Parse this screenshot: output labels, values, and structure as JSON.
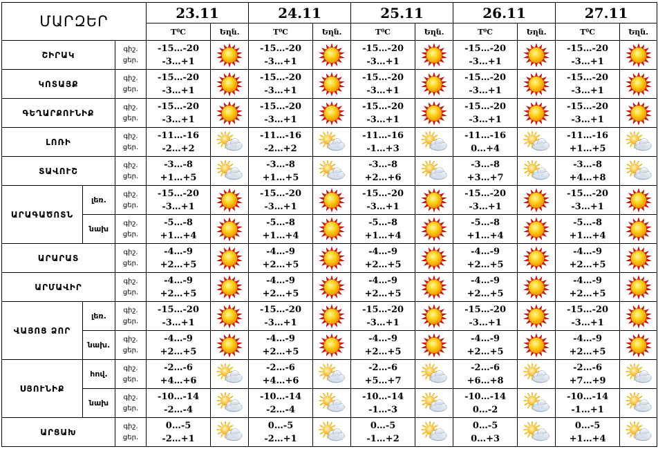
{
  "header": {
    "region_label": "ՄԱՐԶԵՐ",
    "dates": [
      "23.11",
      "24.11",
      "25.11",
      "26.11",
      "27.11"
    ],
    "temp_label": "T⁰C",
    "weather_label": "Եղն."
  },
  "rows": [
    {
      "region": "ՇԻՐԱԿ",
      "sub": "",
      "night_label": "գիշ.",
      "day_label": "ցեր.",
      "cells": [
        {
          "night": "-15…-20",
          "day": "-3…+1",
          "icon": "sun-icon"
        },
        {
          "night": "-15…-20",
          "day": "-3…+1",
          "icon": "sun-icon"
        },
        {
          "night": "-15…-20",
          "day": "-3…+1",
          "icon": "sun-icon"
        },
        {
          "night": "-15…-20",
          "day": "-3…+1",
          "icon": "sun-icon"
        },
        {
          "night": "-15…-20",
          "day": "-3…+1",
          "icon": "sun-icon"
        }
      ]
    },
    {
      "region": "ԿՈՏԱՅՔ",
      "sub": "",
      "night_label": "գիշ.",
      "day_label": "ցեր.",
      "cells": [
        {
          "night": "-15…-20",
          "day": "-3…+1",
          "icon": "sun-icon"
        },
        {
          "night": "-15…-20",
          "day": "-3…+1",
          "icon": "sun-icon"
        },
        {
          "night": "-15…-20",
          "day": "-3…+1",
          "icon": "sun-icon"
        },
        {
          "night": "-15…-20",
          "day": "-3…+1",
          "icon": "sun-icon"
        },
        {
          "night": "-15…-20",
          "day": "-3…+1",
          "icon": "sun-icon"
        }
      ]
    },
    {
      "region": "ԳԵՂԱՐՔՈՒՆԻՔ",
      "sub": "",
      "night_label": "գիշ.",
      "day_label": "ցեր.",
      "cells": [
        {
          "night": "-15…-20",
          "day": "-3…+1",
          "icon": "sun-icon"
        },
        {
          "night": "-15…-20",
          "day": "-3…+1",
          "icon": "sun-icon"
        },
        {
          "night": "-15…-20",
          "day": "-3…+1",
          "icon": "sun-icon"
        },
        {
          "night": "-15…-20",
          "day": "-3…+1",
          "icon": "sun-icon"
        },
        {
          "night": "-15…-20",
          "day": "-3…+1",
          "icon": "sun-icon"
        }
      ]
    },
    {
      "region": "ԼՈՌԻ",
      "sub": "",
      "night_label": "գիշ.",
      "day_label": "ցեր.",
      "cells": [
        {
          "night": "-11…-16",
          "day": "-2…+2",
          "icon": "partly-cloudy-icon"
        },
        {
          "night": "-11…-16",
          "day": "-2…+2",
          "icon": "partly-cloudy-icon"
        },
        {
          "night": "-11…-16",
          "day": "-1…+3",
          "icon": "partly-cloudy-icon"
        },
        {
          "night": "-11…-16",
          "day": "0…+4",
          "icon": "partly-cloudy-icon"
        },
        {
          "night": "-11…-16",
          "day": "+1…+5",
          "icon": "partly-cloudy-icon"
        }
      ]
    },
    {
      "region": "ՏԱՎՈՒՇ",
      "sub": "",
      "night_label": "գիշ.",
      "day_label": "ցեր.",
      "cells": [
        {
          "night": "-3…-8",
          "day": "+1…+5",
          "icon": "partly-cloudy-icon"
        },
        {
          "night": "-3…-8",
          "day": "+1…+5",
          "icon": "partly-cloudy-icon"
        },
        {
          "night": "-3…-8",
          "day": "+2…+6",
          "icon": "partly-cloudy-icon"
        },
        {
          "night": "-3…-8",
          "day": "+3…+7",
          "icon": "partly-cloudy-icon"
        },
        {
          "night": "-3…-8",
          "day": "+4…+8",
          "icon": "partly-cloudy-icon"
        }
      ]
    },
    {
      "region": "ԱՐԱԳԱԾՈՏՆ",
      "sub": "լեռ.",
      "night_label": "գիշ.",
      "day_label": "ցեր.",
      "cells": [
        {
          "night": "-15…-20",
          "day": "-3…+1",
          "icon": "sun-icon"
        },
        {
          "night": "-15…-20",
          "day": "-3…+1",
          "icon": "sun-icon"
        },
        {
          "night": "-15…-20",
          "day": "-3…+1",
          "icon": "sun-icon"
        },
        {
          "night": "-15…-20",
          "day": "-3…+1",
          "icon": "sun-icon"
        },
        {
          "night": "-15…-20",
          "day": "-3…+1",
          "icon": "sun-icon"
        }
      ]
    },
    {
      "region": "",
      "sub": "նախ",
      "night_label": "գիշ.",
      "day_label": "ցեր.",
      "cells": [
        {
          "night": "-5…-8",
          "day": "+1…+4",
          "icon": "sun-icon"
        },
        {
          "night": "-5…-8",
          "day": "+1…+4",
          "icon": "sun-icon"
        },
        {
          "night": "-5…-8",
          "day": "+1…+4",
          "icon": "sun-icon"
        },
        {
          "night": "-5…-8",
          "day": "+1…+4",
          "icon": "sun-icon"
        },
        {
          "night": "-5…-8",
          "day": "+1…+4",
          "icon": "sun-icon"
        }
      ]
    },
    {
      "region": "ԱՐԱՐԱՏ",
      "sub": "",
      "night_label": "գիշ.",
      "day_label": "ցեր.",
      "cells": [
        {
          "night": "-4…-9",
          "day": "+2…+5",
          "icon": "sun-icon"
        },
        {
          "night": "-4…-9",
          "day": "+2…+5",
          "icon": "sun-icon"
        },
        {
          "night": "-4…-9",
          "day": "+2…+5",
          "icon": "sun-icon"
        },
        {
          "night": "-4…-9",
          "day": "+2…+5",
          "icon": "sun-icon"
        },
        {
          "night": "-4…-9",
          "day": "+2…+5",
          "icon": "sun-icon"
        }
      ]
    },
    {
      "region": "ԱՐՄԱՎԻՐ",
      "sub": "",
      "night_label": "գիշ.",
      "day_label": "ցեր.",
      "cells": [
        {
          "night": "-4…-9",
          "day": "+2…+5",
          "icon": "sun-icon"
        },
        {
          "night": "-4…-9",
          "day": "+2…+5",
          "icon": "sun-icon"
        },
        {
          "night": "-4…-9",
          "day": "+2…+5",
          "icon": "sun-icon"
        },
        {
          "night": "-4…-9",
          "day": "+2…+5",
          "icon": "sun-icon"
        },
        {
          "night": "-4…-9",
          "day": "+2…+5",
          "icon": "sun-icon"
        }
      ]
    },
    {
      "region": "ՎԱՅՈՑ ՁՈՐ",
      "sub": "լեռ.",
      "night_label": "գիշ.",
      "day_label": "ցեր.",
      "cells": [
        {
          "night": "-15…-20",
          "day": "-3…+1",
          "icon": "sun-icon"
        },
        {
          "night": "-15…-20",
          "day": "-3…+1",
          "icon": "sun-icon"
        },
        {
          "night": "-15…-20",
          "day": "-3…+1",
          "icon": "sun-icon"
        },
        {
          "night": "-15…-20",
          "day": "-3…+1",
          "icon": "sun-icon"
        },
        {
          "night": "-15…-20",
          "day": "-3…+1",
          "icon": "sun-icon"
        }
      ]
    },
    {
      "region": "",
      "sub": "նախ.",
      "night_label": "գիշ.",
      "day_label": "ցեր.",
      "cells": [
        {
          "night": "-4…-9",
          "day": "+2…+5",
          "icon": "sun-icon"
        },
        {
          "night": "-4…-9",
          "day": "+2…+5",
          "icon": "sun-icon"
        },
        {
          "night": "-4…-9",
          "day": "+2…+5",
          "icon": "sun-icon"
        },
        {
          "night": "-4…-9",
          "day": "+2…+5",
          "icon": "sun-icon"
        },
        {
          "night": "-4…-9",
          "day": "+2…+5",
          "icon": "sun-icon"
        }
      ]
    },
    {
      "region": "ՍՅՈՒՆԻՔ",
      "sub": "հով.",
      "night_label": "գիշ.",
      "day_label": "ցեր.",
      "cells": [
        {
          "night": "-2…-6",
          "day": "+4…+6",
          "icon": "partly-cloudy-icon"
        },
        {
          "night": "-2…-6",
          "day": "+4…+6",
          "icon": "partly-cloudy-icon"
        },
        {
          "night": "-2…-6",
          "day": "+5…+7",
          "icon": "partly-cloudy-icon"
        },
        {
          "night": "-2…-6",
          "day": "+6…+8",
          "icon": "partly-cloudy-icon"
        },
        {
          "night": "-2…-6",
          "day": "+7…+9",
          "icon": "partly-cloudy-icon"
        }
      ]
    },
    {
      "region": "",
      "sub": "նախ",
      "night_label": "գիշ.",
      "day_label": "ցեր.",
      "cells": [
        {
          "night": "-10…-14",
          "day": "-2…-4",
          "icon": "partly-cloudy-icon"
        },
        {
          "night": "-10…-14",
          "day": "-2…-4",
          "icon": "partly-cloudy-icon"
        },
        {
          "night": "-10…-14",
          "day": "-1…-3",
          "icon": "partly-cloudy-icon"
        },
        {
          "night": "-10…-14",
          "day": "0…-2",
          "icon": "partly-cloudy-icon"
        },
        {
          "night": "-10…-14",
          "day": "-1…+1",
          "icon": "partly-cloudy-icon"
        }
      ]
    },
    {
      "region": "ԱՐՑԱԽ",
      "sub": "",
      "night_label": "գիշ.",
      "day_label": "ցեր.",
      "cells": [
        {
          "night": "0…-5",
          "day": "-2…+1",
          "icon": "partly-cloudy-icon"
        },
        {
          "night": "0…-5",
          "day": "-2…+1",
          "icon": "partly-cloudy-icon"
        },
        {
          "night": "0…-5",
          "day": "-1…+2",
          "icon": "partly-cloudy-icon"
        },
        {
          "night": "0…-5",
          "day": "0…+3",
          "icon": "partly-cloudy-icon"
        },
        {
          "night": "0…-5",
          "day": "+1…+4",
          "icon": "partly-cloudy-icon"
        }
      ]
    }
  ]
}
